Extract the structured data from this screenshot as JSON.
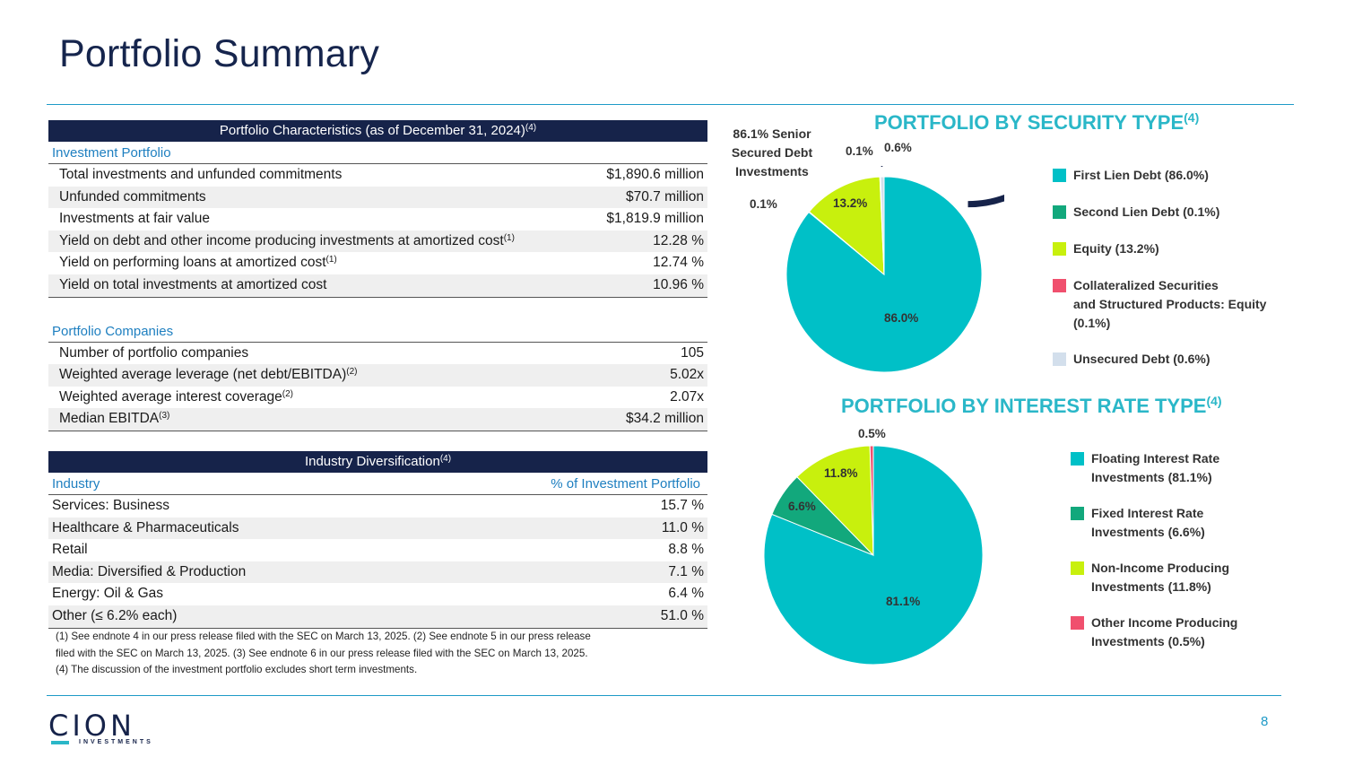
{
  "title": "Portfolio Summary",
  "characteristics": {
    "header": "Portfolio Characteristics (as of December 31, 2024)",
    "header_sup": "(4)",
    "investment_portfolio_label": "Investment Portfolio",
    "investment_rows": [
      {
        "label": "Total investments and unfunded commitments",
        "sup": "",
        "value": "$1,890.6 million"
      },
      {
        "label": "Unfunded commitments",
        "sup": "",
        "value": "$70.7 million"
      },
      {
        "label": "Investments at fair value",
        "sup": "",
        "value": "$1,819.9 million"
      },
      {
        "label": "Yield on debt and other income producing investments at amortized cost",
        "sup": "(1)",
        "value": "12.28 %"
      },
      {
        "label": "Yield on performing loans at amortized cost",
        "sup": "(1)",
        "value": "12.74 %"
      },
      {
        "label": "Yield on total investments at amortized cost",
        "sup": "",
        "value": "10.96 %"
      }
    ],
    "portfolio_companies_label": "Portfolio Companies",
    "company_rows": [
      {
        "label": "Number of portfolio companies",
        "sup": "",
        "value": "105"
      },
      {
        "label": "Weighted average leverage (net debt/EBITDA)",
        "sup": "(2)",
        "value": "5.02x"
      },
      {
        "label": "Weighted average interest coverage",
        "sup": "(2)",
        "value": "2.07x"
      },
      {
        "label": "Median EBITDA",
        "sup": "(3)",
        "value": "$34.2 million"
      }
    ]
  },
  "industry": {
    "header": "Industry Diversification",
    "header_sup": "(4)",
    "col_industry": "Industry",
    "col_pct": "% of Investment Portfolio",
    "rows": [
      {
        "label": "Services: Business",
        "value": "15.7 %"
      },
      {
        "label": "Healthcare & Pharmaceuticals",
        "value": "11.0 %"
      },
      {
        "label": "Retail",
        "value": "8.8 %"
      },
      {
        "label": "Media: Diversified & Production",
        "value": "7.1 %"
      },
      {
        "label": "Energy: Oil & Gas",
        "value": "6.4 %"
      },
      {
        "label": "Other (≤ 6.2% each)",
        "value": "51.0 %"
      }
    ]
  },
  "footnotes": [
    "(1) See endnote 4 in our press release filed with the SEC on March 13, 2025. (2) See endnote 5 in our press release",
    "filed with the SEC on March 13, 2025. (3) See endnote 6 in our press release filed with the SEC on March 13, 2025.",
    "(4) The discussion of the investment portfolio excludes short term investments."
  ],
  "chart_data": [
    {
      "type": "pie",
      "title": "PORTFOLIO BY SECURITY TYPE",
      "title_sup": "(4)",
      "annotation": "86.1% Senior Secured Debt Investments",
      "annotation_lines": [
        "86.1% Senior",
        "Secured Debt",
        "Investments"
      ],
      "slices": [
        {
          "name": "First Lien Debt (86.0%)",
          "value": 86.0,
          "label": "86.0%",
          "color": "#00c0c7"
        },
        {
          "name": "Second Lien Debt (0.1%)",
          "value": 0.1,
          "label": "0.1%",
          "color": "#12a87c"
        },
        {
          "name": "Equity (13.2%)",
          "value": 13.2,
          "label": "13.2%",
          "color": "#c8f00d"
        },
        {
          "name": "Collateralized Securities and Structured Products: Equity (0.1%)",
          "value": 0.1,
          "label": "0.1%",
          "color": "#f0506e"
        },
        {
          "name": "Unsecured Debt (0.6%)",
          "value": 0.6,
          "label": "0.6%",
          "color": "#d3dfec"
        }
      ],
      "legend_lines": [
        [
          "First Lien Debt (86.0%)"
        ],
        [
          "Second Lien Debt (0.1%)"
        ],
        [
          "Equity (13.2%)"
        ],
        [
          "Collateralized Securities",
          "and Structured Products: Equity",
          "(0.1%)"
        ],
        [
          "Unsecured Debt (0.6%)"
        ]
      ],
      "ring_color": "#16234a"
    },
    {
      "type": "pie",
      "title": "PORTFOLIO BY INTEREST RATE TYPE",
      "title_sup": "(4)",
      "slices": [
        {
          "name": "Floating Interest Rate Investments (81.1%)",
          "value": 81.1,
          "label": "81.1%",
          "color": "#00c0c7"
        },
        {
          "name": "Fixed Interest Rate Investments (6.6%)",
          "value": 6.6,
          "label": "6.6%",
          "color": "#12a87c"
        },
        {
          "name": "Non-Income Producing Investments (11.8%)",
          "value": 11.8,
          "label": "11.8%",
          "color": "#c8f00d"
        },
        {
          "name": "Other Income Producing Investments (0.5%)",
          "value": 0.5,
          "label": "0.5%",
          "color": "#f0506e"
        }
      ],
      "legend_lines": [
        [
          "Floating Interest Rate",
          "Investments (81.1%)"
        ],
        [
          "Fixed Interest Rate",
          "Investments (6.6%)"
        ],
        [
          "Non-Income Producing",
          "Investments (11.8%)"
        ],
        [
          "Other Income Producing",
          "Investments (0.5%)"
        ]
      ]
    }
  ],
  "logo": {
    "word": "CION",
    "sub": "INVESTMENTS"
  },
  "page_number": "8"
}
